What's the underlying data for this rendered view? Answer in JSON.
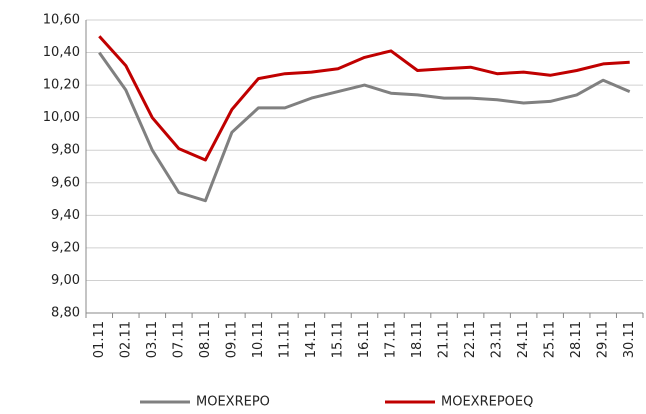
{
  "chart_data": {
    "type": "line",
    "categories": [
      "01.11",
      "02.11",
      "03.11",
      "07.11",
      "08.11",
      "09.11",
      "10.11",
      "11.11",
      "14.11",
      "15.11",
      "16.11",
      "17.11",
      "18.11",
      "21.11",
      "22.11",
      "23.11",
      "24.11",
      "25.11",
      "28.11",
      "29.11",
      "30.11"
    ],
    "series": [
      {
        "name": "MOEXREPO",
        "color": "#808080",
        "values": [
          10.4,
          10.17,
          9.8,
          9.54,
          9.49,
          9.91,
          10.06,
          10.06,
          10.12,
          10.16,
          10.2,
          10.15,
          10.14,
          10.12,
          10.12,
          10.11,
          10.09,
          10.1,
          10.14,
          10.23,
          10.16
        ]
      },
      {
        "name": "MOEXREPOEQ",
        "color": "#c00000",
        "values": [
          10.5,
          10.32,
          10.0,
          9.81,
          9.74,
          10.05,
          10.24,
          10.27,
          10.28,
          10.3,
          10.37,
          10.41,
          10.29,
          10.3,
          10.31,
          10.27,
          10.28,
          10.26,
          10.29,
          10.33,
          10.34
        ]
      }
    ],
    "ylim": [
      8.8,
      10.6
    ],
    "yticks": [
      {
        "value": 8.8,
        "label": "8,80"
      },
      {
        "value": 9.0,
        "label": "9,00"
      },
      {
        "value": 9.2,
        "label": "9,20"
      },
      {
        "value": 9.4,
        "label": "9,40"
      },
      {
        "value": 9.6,
        "label": "9,60"
      },
      {
        "value": 9.8,
        "label": "9,80"
      },
      {
        "value": 10.0,
        "label": "10,00"
      },
      {
        "value": 10.2,
        "label": "10,20"
      },
      {
        "value": 10.4,
        "label": "10,40"
      },
      {
        "value": 10.6,
        "label": "10,60"
      }
    ],
    "grid": true,
    "legend": "bottom"
  }
}
